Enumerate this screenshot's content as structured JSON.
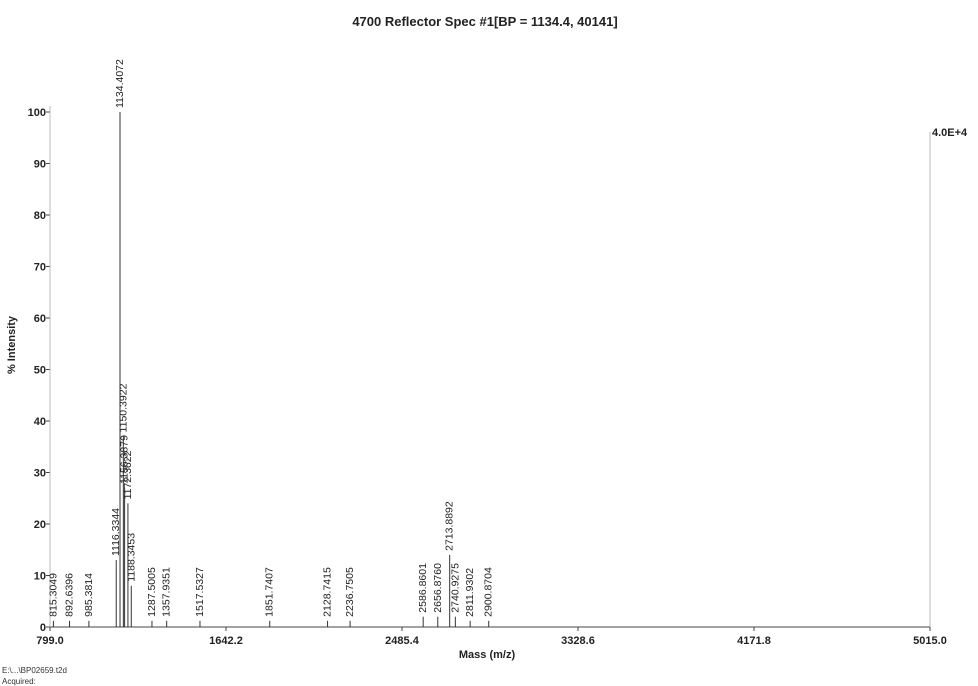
{
  "chart_data": {
    "type": "line",
    "title": "4700 Reflector Spec #1[BP = 1134.4, 40141]",
    "xlabel": "Mass (m/z)",
    "ylabel": "% Intensity",
    "xlim": [
      799.0,
      5015.0
    ],
    "ylim": [
      0,
      100
    ],
    "x_ticks": [
      "799.0",
      "1642.2",
      "2485.4",
      "3328.6",
      "4171.8",
      "5015.0"
    ],
    "y_ticks": [
      0,
      10,
      20,
      30,
      40,
      50,
      60,
      70,
      80,
      90,
      100
    ],
    "max_intensity_label": "4.0E+4",
    "peaks": [
      {
        "mz": 815.3049,
        "intensity": 1.2,
        "label": "815.3049"
      },
      {
        "mz": 892.6396,
        "intensity": 1.2,
        "label": "892.6396"
      },
      {
        "mz": 985.3814,
        "intensity": 1.2,
        "label": "985.3814"
      },
      {
        "mz": 1116.3344,
        "intensity": 13,
        "label": "1116.3344"
      },
      {
        "mz": 1134.4072,
        "intensity": 100,
        "label": "1134.4072"
      },
      {
        "mz": 1150.3922,
        "intensity": 37,
        "label": "1150.3922"
      },
      {
        "mz": 1156.3879,
        "intensity": 27,
        "label": "1156.3879"
      },
      {
        "mz": 1172.3622,
        "intensity": 24,
        "label": "1172.3622"
      },
      {
        "mz": 1188.3453,
        "intensity": 8,
        "label": "1188.3453"
      },
      {
        "mz": 1287.5005,
        "intensity": 1.2,
        "label": "1287.5005"
      },
      {
        "mz": 1357.9351,
        "intensity": 1.2,
        "label": "1357.9351"
      },
      {
        "mz": 1517.5327,
        "intensity": 1.2,
        "label": "1517.5327"
      },
      {
        "mz": 1851.7407,
        "intensity": 1.2,
        "label": "1851.7407"
      },
      {
        "mz": 2128.7415,
        "intensity": 1.2,
        "label": "2128.7415"
      },
      {
        "mz": 2236.7505,
        "intensity": 1.2,
        "label": "2236.7505"
      },
      {
        "mz": 2586.8601,
        "intensity": 2,
        "label": "2586.8601"
      },
      {
        "mz": 2656.876,
        "intensity": 2,
        "label": "2656.8760"
      },
      {
        "mz": 2713.8892,
        "intensity": 14,
        "label": "2713.8892"
      },
      {
        "mz": 2740.9275,
        "intensity": 2,
        "label": "2740.9275"
      },
      {
        "mz": 2811.9302,
        "intensity": 1.2,
        "label": "2811.9302"
      },
      {
        "mz": 2900.8704,
        "intensity": 1.2,
        "label": "2900.8704"
      }
    ]
  },
  "footer": {
    "line1": "E:\\...\\BP02659.t2d",
    "line2": "Acquired:"
  }
}
